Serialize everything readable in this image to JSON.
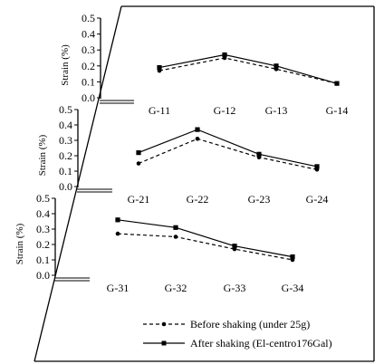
{
  "chart_data": [
    {
      "type": "line",
      "categories": [
        "G-11",
        "G-12",
        "G-13",
        "G-14"
      ],
      "ylabel": "Strain (%)",
      "ylim": [
        0,
        0.5
      ],
      "yticks": [
        "0.5",
        "0.4",
        "0.3",
        "0.2",
        "0.1",
        "0.0"
      ],
      "series": [
        {
          "name": "Before shaking (under 25g)",
          "values": [
            0.17,
            0.25,
            0.18,
            0.09
          ]
        },
        {
          "name": "After shaking (El-centro176Gal)",
          "values": [
            0.19,
            0.27,
            0.2,
            0.09
          ]
        }
      ]
    },
    {
      "type": "line",
      "categories": [
        "G-21",
        "G-22",
        "G-23",
        "G-24"
      ],
      "ylabel": "Strain (%)",
      "ylim": [
        0,
        0.5
      ],
      "yticks": [
        "0.5",
        "0.4",
        "0.3",
        "0.2",
        "0.1",
        "0.0"
      ],
      "series": [
        {
          "name": "Before shaking (under 25g)",
          "values": [
            0.15,
            0.31,
            0.19,
            0.11
          ]
        },
        {
          "name": "After shaking (El-centro176Gal)",
          "values": [
            0.22,
            0.37,
            0.21,
            0.13
          ]
        }
      ]
    },
    {
      "type": "line",
      "categories": [
        "G-31",
        "G-32",
        "G-33",
        "G-34"
      ],
      "ylabel": "Strain (%)",
      "ylim": [
        0,
        0.5
      ],
      "yticks": [
        "0.5",
        "0.4",
        "0.3",
        "0.2",
        "0.1",
        "0.0"
      ],
      "series": [
        {
          "name": "Before shaking (under 25g)",
          "values": [
            0.27,
            0.25,
            0.17,
            0.1
          ]
        },
        {
          "name": "After shaking (El-centro176Gal)",
          "values": [
            0.36,
            0.31,
            0.19,
            0.12
          ]
        }
      ]
    }
  ],
  "legend": {
    "before_label": "Before shaking (under 25g)",
    "after_label": "After shaking (El-centro176Gal)"
  }
}
